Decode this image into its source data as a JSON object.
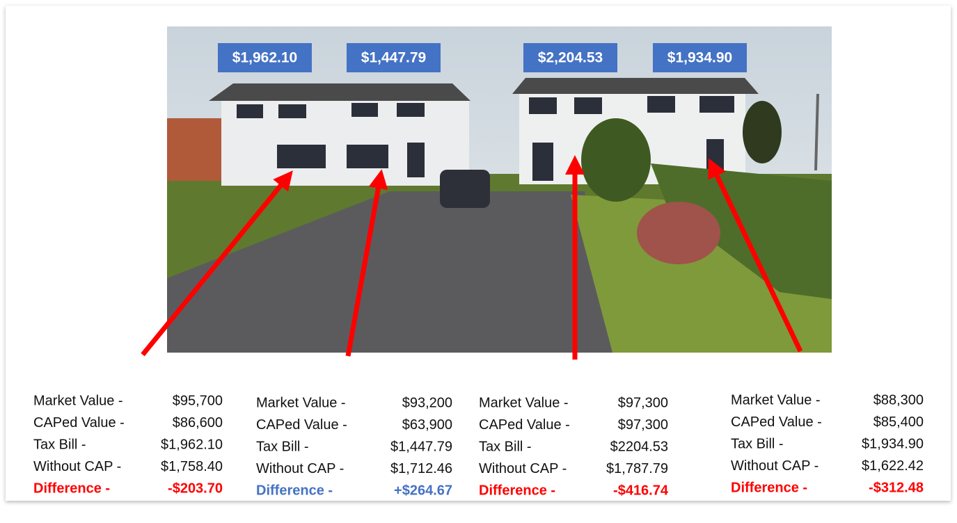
{
  "photo_labels": [
    "$1,962.10",
    "$1,447.79",
    "$2,204.53",
    "$1,934.90"
  ],
  "columns": [
    {
      "rows": [
        {
          "label": "Market Value -",
          "value": "$95,700"
        },
        {
          "label": "CAPed Value -",
          "value": "$86,600"
        },
        {
          "label": "Tax Bill -",
          "value": "$1,962.10"
        },
        {
          "label": "Without CAP -",
          "value": "$1,758.40"
        },
        {
          "label": "Difference -",
          "value": "-$203.70"
        }
      ],
      "difference_color": "#ff0000"
    },
    {
      "rows": [
        {
          "label": "Market Value -",
          "value": "$93,200"
        },
        {
          "label": "CAPed Value -",
          "value": "$63,900"
        },
        {
          "label": "Tax Bill -",
          "value": "$1,447.79"
        },
        {
          "label": "Without CAP -",
          "value": "$1,712.46"
        },
        {
          "label": "Difference -",
          "value": "+$264.67"
        }
      ],
      "difference_color": "#4472c4"
    },
    {
      "rows": [
        {
          "label": "Market Value -",
          "value": "$97,300"
        },
        {
          "label": "CAPed Value -",
          "value": "$97,300"
        },
        {
          "label": "Tax Bill -",
          "value": "$2204.53"
        },
        {
          "label": "Without CAP -",
          "value": "$1,787.79"
        },
        {
          "label": "Difference -",
          "value": "-$416.74"
        }
      ],
      "difference_color": "#ff0000"
    },
    {
      "rows": [
        {
          "label": "Market Value -",
          "value": "$88,300"
        },
        {
          "label": "CAPed Value -",
          "value": "$85,400"
        },
        {
          "label": "Tax Bill -",
          "value": "$1,934.90"
        },
        {
          "label": "Without CAP -",
          "value": "$1,622.42"
        },
        {
          "label": "Difference -",
          "value": "-$312.48"
        }
      ],
      "difference_color": "#ff0000"
    }
  ]
}
